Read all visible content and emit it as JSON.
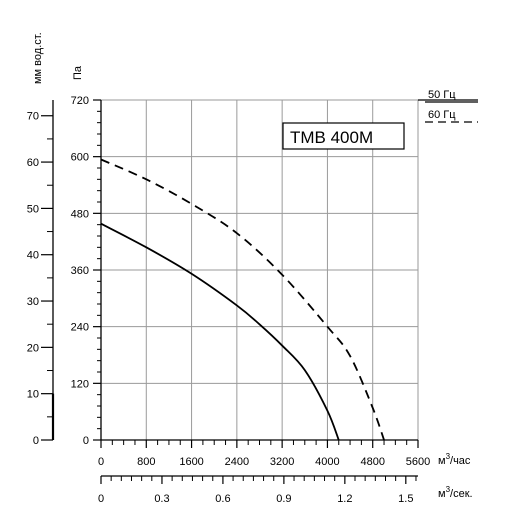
{
  "chart_data": {
    "type": "line",
    "title": "TMB 400M",
    "x_axis": {
      "label": "м³/час",
      "ticks": [
        0,
        800,
        1600,
        2400,
        3200,
        4000,
        4800,
        5600
      ],
      "range": [
        0,
        5600
      ]
    },
    "x2_axis": {
      "label": "м³/сек.",
      "ticks": [
        "0",
        "0.3",
        "0.6",
        "0.9",
        "1.2",
        "1.5"
      ],
      "range": [
        0,
        1.56
      ]
    },
    "y_axis": {
      "label": "Па",
      "ticks": [
        0,
        120,
        240,
        360,
        480,
        600,
        720
      ],
      "range": [
        0,
        720
      ]
    },
    "y2_axis": {
      "label": "мм вод.ст.",
      "ticks": [
        0,
        10,
        20,
        30,
        40,
        50,
        60,
        70
      ],
      "range": [
        0,
        73.4
      ]
    },
    "legend": [
      {
        "name": "50 Гц",
        "style": "solid"
      },
      {
        "name": "60 Гц",
        "style": "dashed"
      }
    ],
    "series": [
      {
        "name": "50 Гц",
        "style": "solid",
        "color": "#000000",
        "points": [
          [
            0,
            458
          ],
          [
            800,
            408
          ],
          [
            1600,
            352
          ],
          [
            2400,
            285
          ],
          [
            2800,
            245
          ],
          [
            3200,
            200
          ],
          [
            3600,
            148
          ],
          [
            4000,
            62
          ],
          [
            4200,
            0
          ]
        ]
      },
      {
        "name": "60 Гц",
        "style": "dashed",
        "color": "#000000",
        "points": [
          [
            0,
            594
          ],
          [
            800,
            552
          ],
          [
            1600,
            500
          ],
          [
            2400,
            438
          ],
          [
            3200,
            350
          ],
          [
            4000,
            240
          ],
          [
            4400,
            178
          ],
          [
            4800,
            68
          ],
          [
            5000,
            0
          ]
        ]
      }
    ],
    "grid": true
  }
}
